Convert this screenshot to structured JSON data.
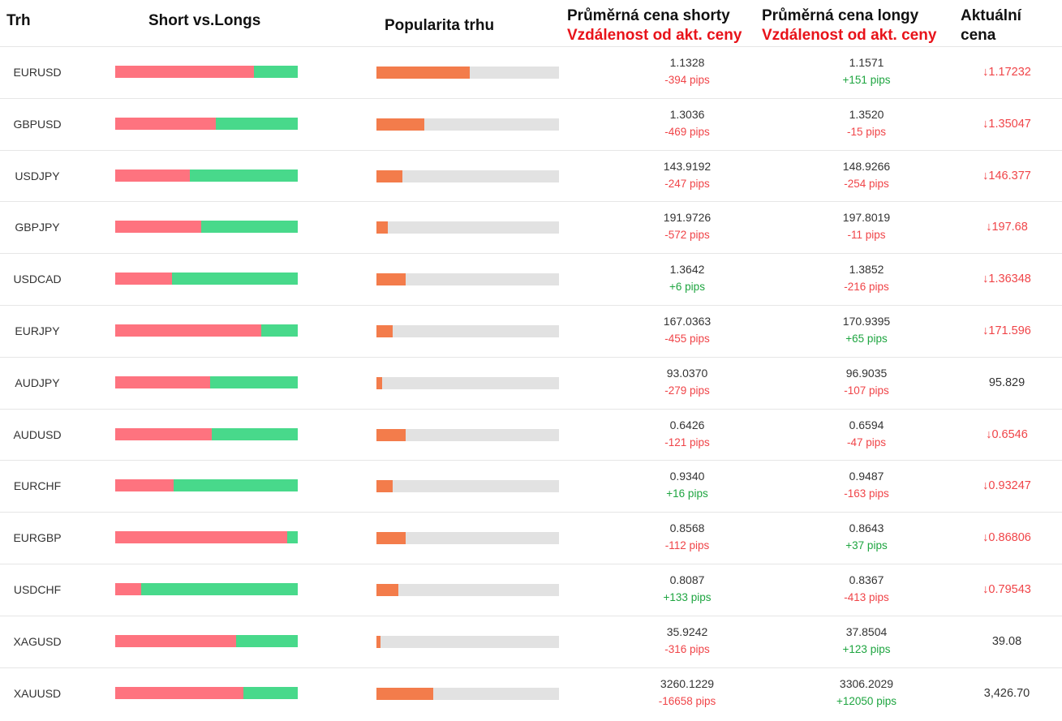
{
  "headers": {
    "market": "Trh",
    "short_long": "Short vs.Longs",
    "popularity": "Popularita trhu",
    "avg_short": "Průměrná cena shorty",
    "avg_short_sub": "Vzdálenost od akt. ceny",
    "avg_long": "Průměrná cena longy",
    "avg_long_sub": "Vzdálenost od akt. ceny",
    "current_1": "Aktuální",
    "current_2": "cena"
  },
  "colors": {
    "short": "#fe737f",
    "long": "#48d98b",
    "popularity": "#f37c4b",
    "negative": "#f04448",
    "positive": "#1ea540",
    "down": "#f04448"
  },
  "rows": [
    {
      "symbol": "EURUSD",
      "short_pct": 76,
      "popularity_pct": 51,
      "avg_short": "1.1328",
      "short_dist": "-394 pips",
      "avg_long": "1.1571",
      "long_dist": "+151 pips",
      "down": true,
      "current": "1.17232"
    },
    {
      "symbol": "GBPUSD",
      "short_pct": 55,
      "popularity_pct": 26,
      "avg_short": "1.3036",
      "short_dist": "-469 pips",
      "avg_long": "1.3520",
      "long_dist": "-15 pips",
      "down": true,
      "current": "1.35047"
    },
    {
      "symbol": "USDJPY",
      "short_pct": 41,
      "popularity_pct": 14,
      "avg_short": "143.9192",
      "short_dist": "-247 pips",
      "avg_long": "148.9266",
      "long_dist": "-254 pips",
      "down": true,
      "current": "146.377"
    },
    {
      "symbol": "GBPJPY",
      "short_pct": 47,
      "popularity_pct": 6,
      "avg_short": "191.9726",
      "short_dist": "-572 pips",
      "avg_long": "197.8019",
      "long_dist": "-11 pips",
      "down": true,
      "current": "197.68"
    },
    {
      "symbol": "USDCAD",
      "short_pct": 31,
      "popularity_pct": 16,
      "avg_short": "1.3642",
      "short_dist": "+6 pips",
      "avg_long": "1.3852",
      "long_dist": "-216 pips",
      "down": true,
      "current": "1.36348"
    },
    {
      "symbol": "EURJPY",
      "short_pct": 80,
      "popularity_pct": 9,
      "avg_short": "167.0363",
      "short_dist": "-455 pips",
      "avg_long": "170.9395",
      "long_dist": "+65 pips",
      "down": true,
      "current": "171.596"
    },
    {
      "symbol": "AUDJPY",
      "short_pct": 52,
      "popularity_pct": 3,
      "avg_short": "93.0370",
      "short_dist": "-279 pips",
      "avg_long": "96.9035",
      "long_dist": "-107 pips",
      "down": false,
      "current": "95.829"
    },
    {
      "symbol": "AUDUSD",
      "short_pct": 53,
      "popularity_pct": 16,
      "avg_short": "0.6426",
      "short_dist": "-121 pips",
      "avg_long": "0.6594",
      "long_dist": "-47 pips",
      "down": true,
      "current": "0.6546"
    },
    {
      "symbol": "EURCHF",
      "short_pct": 32,
      "popularity_pct": 9,
      "avg_short": "0.9340",
      "short_dist": "+16 pips",
      "avg_long": "0.9487",
      "long_dist": "-163 pips",
      "down": true,
      "current": "0.93247"
    },
    {
      "symbol": "EURGBP",
      "short_pct": 94,
      "popularity_pct": 16,
      "avg_short": "0.8568",
      "short_dist": "-112 pips",
      "avg_long": "0.8643",
      "long_dist": "+37 pips",
      "down": true,
      "current": "0.86806"
    },
    {
      "symbol": "USDCHF",
      "short_pct": 14,
      "popularity_pct": 12,
      "avg_short": "0.8087",
      "short_dist": "+133 pips",
      "avg_long": "0.8367",
      "long_dist": "-413 pips",
      "down": true,
      "current": "0.79543"
    },
    {
      "symbol": "XAGUSD",
      "short_pct": 66,
      "popularity_pct": 2,
      "avg_short": "35.9242",
      "short_dist": "-316 pips",
      "avg_long": "37.8504",
      "long_dist": "+123 pips",
      "down": false,
      "current": "39.08"
    },
    {
      "symbol": "XAUUSD",
      "short_pct": 70,
      "popularity_pct": 31,
      "avg_short": "3260.1229",
      "short_dist": "-16658 pips",
      "avg_long": "3306.2029",
      "long_dist": "+12050 pips",
      "down": false,
      "current": "3,426.70"
    }
  ]
}
